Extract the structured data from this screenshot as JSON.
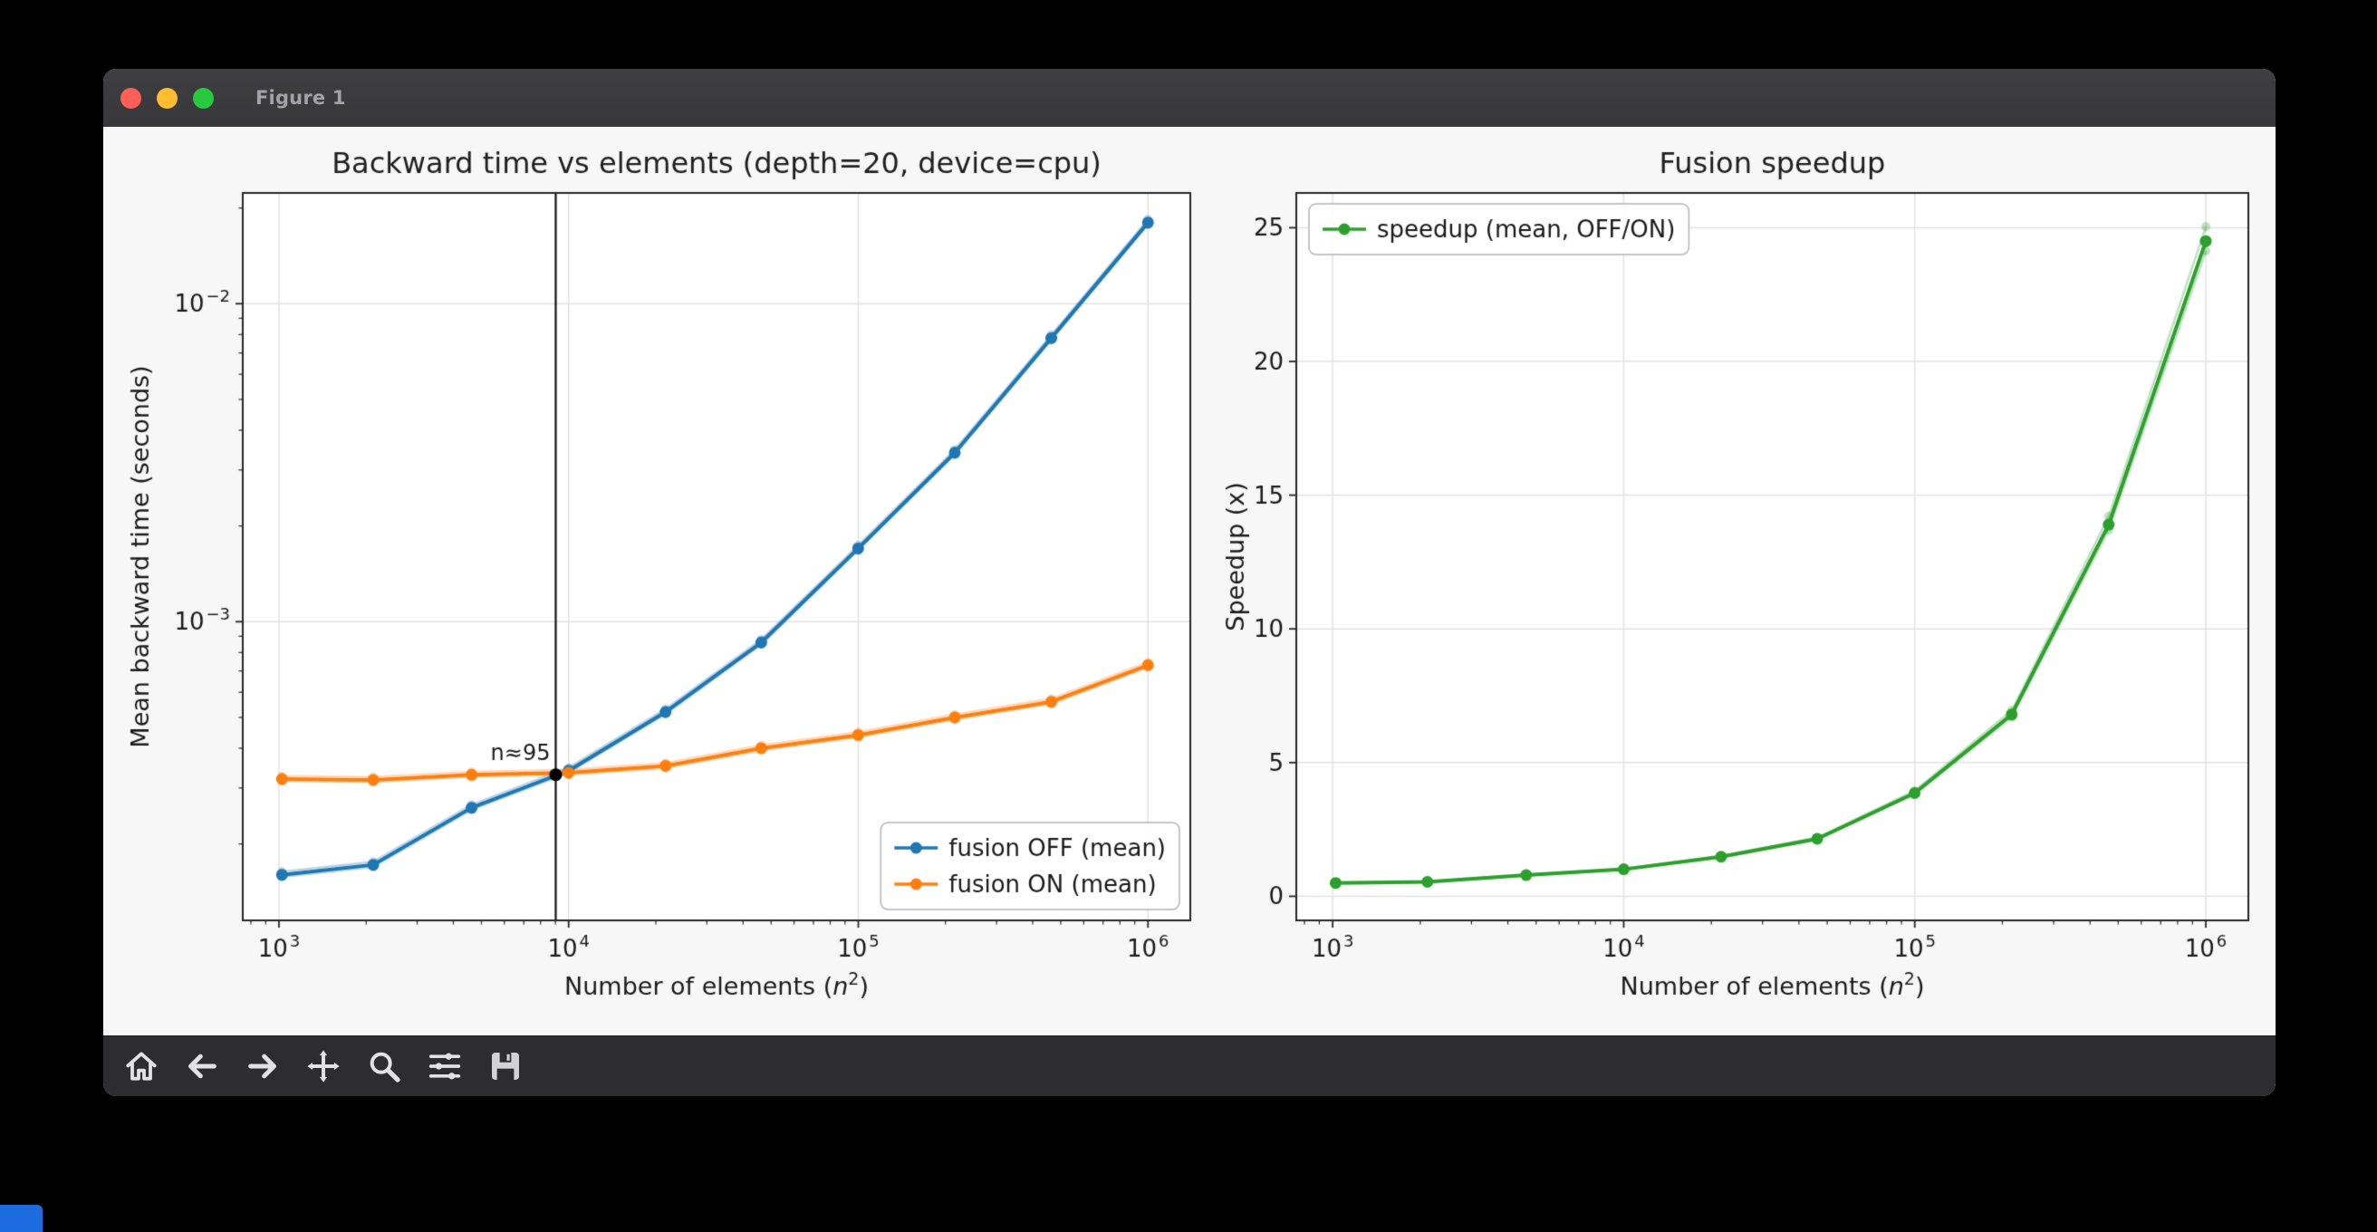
{
  "window": {
    "title": "Figure 1",
    "traffic_lights": [
      {
        "name": "close",
        "color": "#ff5f57"
      },
      {
        "name": "minimize",
        "color": "#febc2e"
      },
      {
        "name": "zoom",
        "color": "#28c840"
      }
    ]
  },
  "toolbar": {
    "buttons": [
      {
        "name": "Home"
      },
      {
        "name": "Back"
      },
      {
        "name": "Forward"
      },
      {
        "name": "Pan"
      },
      {
        "name": "Zoom"
      },
      {
        "name": "Subplots"
      },
      {
        "name": "Save"
      }
    ]
  },
  "figure_style": {
    "figure_bg": "#f7f7f8",
    "axes_bg": "#ffffff",
    "grid_color": "#e2e2e2",
    "spine_color": "#262626",
    "text_color": "#1a1a1a",
    "run_alpha": 0.3,
    "run_factors": [
      1.022,
      0.985
    ]
  },
  "background": {
    "fragment_color": "#1c6ce0"
  },
  "chart_data": [
    {
      "type": "line",
      "title": "Backward time vs elements (depth=20, device=cpu)",
      "xlabel": "Number of elements (n²)",
      "xlabel_parts": [
        {
          "t": "Number of elements (",
          "s": "r"
        },
        {
          "t": "n",
          "s": "i"
        },
        {
          "t": "2",
          "s": "sup"
        },
        {
          "t": ")",
          "s": "r"
        }
      ],
      "ylabel": "Mean backward time (seconds)",
      "xscale": "log",
      "yscale": "log",
      "xlim": [
        750,
        1400000
      ],
      "ylim": [
        0.000115,
        0.0223
      ],
      "xticks": [
        1000,
        10000,
        100000,
        1000000
      ],
      "yticks": [
        0.001,
        0.01
      ],
      "grid": true,
      "x": [
        1024,
        2116,
        4624,
        10000,
        21609,
        46225,
        99856,
        215296,
        463761,
        1000000
      ],
      "series": [
        {
          "name": "fusion OFF (mean)",
          "color": "#1f77b4",
          "values": [
            0.00016,
            0.000172,
            0.00026,
            0.00034,
            0.00052,
            0.00086,
            0.0017,
            0.0034,
            0.0078,
            0.018
          ]
        },
        {
          "name": "fusion ON (mean)",
          "color": "#ff7f0e",
          "values": [
            0.00032,
            0.000318,
            0.00033,
            0.000335,
            0.000352,
            0.0004,
            0.00044,
            0.0005,
            0.00056,
            0.00073
          ]
        }
      ],
      "annotation": {
        "label": "n≈95",
        "x": 9025,
        "y": 0.00033
      },
      "legend": {
        "position": "lower right",
        "entries": [
          "fusion OFF (mean)",
          "fusion ON (mean)"
        ]
      }
    },
    {
      "type": "line",
      "title": "Fusion speedup",
      "xlabel": "Number of elements (n²)",
      "xlabel_parts": [
        {
          "t": "Number of elements (",
          "s": "r"
        },
        {
          "t": "n",
          "s": "i"
        },
        {
          "t": "2",
          "s": "sup"
        },
        {
          "t": ")",
          "s": "r"
        }
      ],
      "ylabel": "Speedup (x)",
      "xscale": "log",
      "yscale": "linear",
      "xlim": [
        750,
        1400000
      ],
      "ylim": [
        -0.9,
        26.3
      ],
      "xticks": [
        1000,
        10000,
        100000,
        1000000
      ],
      "yticks": [
        0,
        5,
        10,
        15,
        20,
        25
      ],
      "grid": true,
      "x": [
        1024,
        2116,
        4624,
        10000,
        21609,
        46225,
        99856,
        215296,
        463761,
        1000000
      ],
      "series": [
        {
          "name": "speedup (mean, OFF/ON)",
          "color": "#2ca02c",
          "values": [
            0.5,
            0.54,
            0.79,
            1.01,
            1.48,
            2.15,
            3.86,
            6.8,
            13.9,
            24.5
          ]
        }
      ],
      "legend": {
        "position": "upper left",
        "entries": [
          "speedup (mean, OFF/ON)"
        ]
      }
    }
  ]
}
